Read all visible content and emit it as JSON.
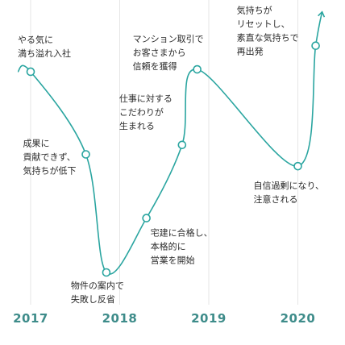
{
  "chart_data": {
    "type": "line",
    "title": "",
    "xlabel": "",
    "ylabel": "",
    "x_ticks": [
      "2017",
      "2018",
      "2019",
      "2020"
    ],
    "grid": "vertical lines at each year",
    "accent_color": "#2aa5a0",
    "tick_label_color": "#3e8c8a",
    "series": [
      {
        "points": [
          {
            "x": 2017.0,
            "level": 0.85,
            "annotation": [
              "やる気に",
              "満ち溢れ入社"
            ]
          },
          {
            "x": 2017.62,
            "level": 0.5,
            "annotation": [
              "成果に",
              "貢献できず、",
              "気持ちが低下"
            ]
          },
          {
            "x": 2017.85,
            "level": 0.0,
            "annotation": [
              "物件の案内で",
              "失敗し反省"
            ]
          },
          {
            "x": 2018.3,
            "level": 0.23,
            "annotation": [
              "宅建に合格し、",
              "本格的に",
              "営業を開始"
            ]
          },
          {
            "x": 2018.7,
            "level": 0.54,
            "annotation": [
              "仕事に対する",
              "こだわりが",
              "生まれる"
            ]
          },
          {
            "x": 2018.87,
            "level": 0.86,
            "annotation": [
              "マンション取引で",
              "お客さまから",
              "信頼を獲得"
            ]
          },
          {
            "x": 2020.0,
            "level": 0.45,
            "annotation": [
              "自信過剰になり、",
              "注意される"
            ]
          },
          {
            "x": 2020.2,
            "level": 0.96,
            "annotation": [
              "気持ちが",
              "リセットし、",
              "素直な気持ちで",
              "再出発"
            ]
          }
        ]
      }
    ]
  }
}
